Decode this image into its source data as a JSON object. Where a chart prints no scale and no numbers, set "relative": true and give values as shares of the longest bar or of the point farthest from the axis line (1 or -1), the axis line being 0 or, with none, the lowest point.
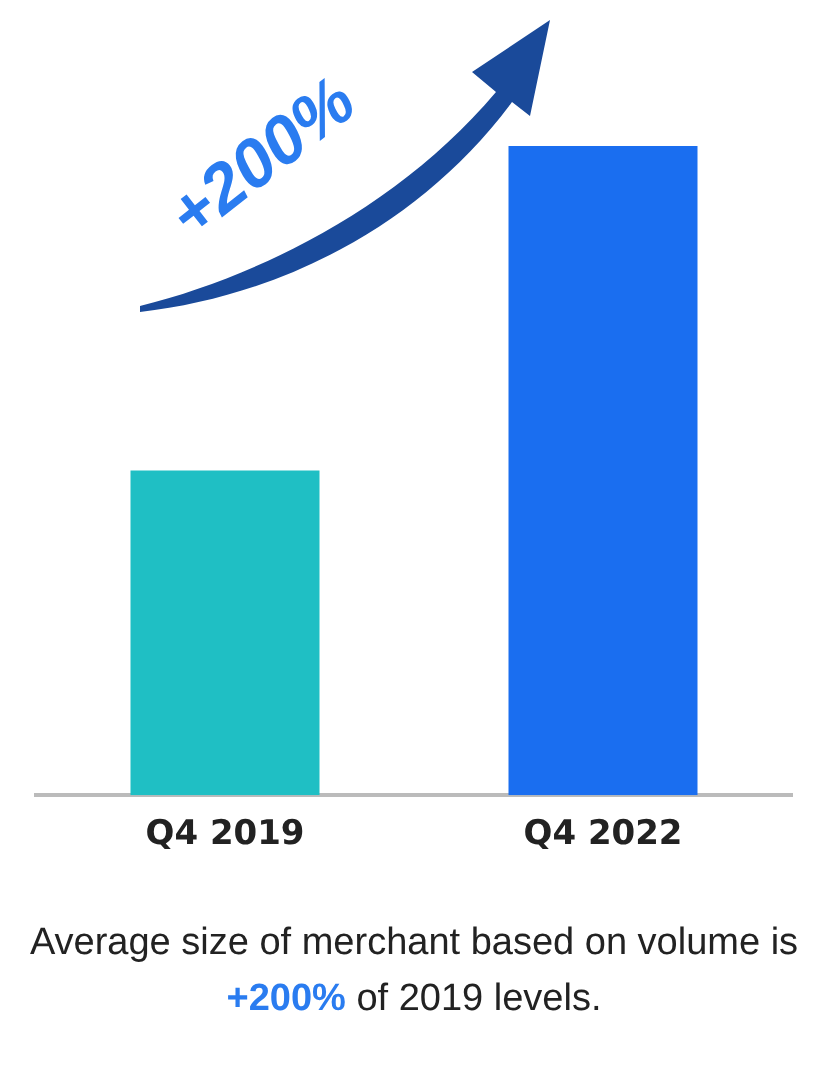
{
  "chart_data": {
    "type": "bar",
    "relative": true,
    "categories": [
      "Q4 2019",
      "Q4 2022"
    ],
    "values": [
      0.5,
      1
    ],
    "colors": [
      "#1fbfc4",
      "#1a6ef0"
    ],
    "annotations": [
      "+200%",
      "Average size of merchant based on volume is +200% of 2019 levels."
    ]
  }
}
